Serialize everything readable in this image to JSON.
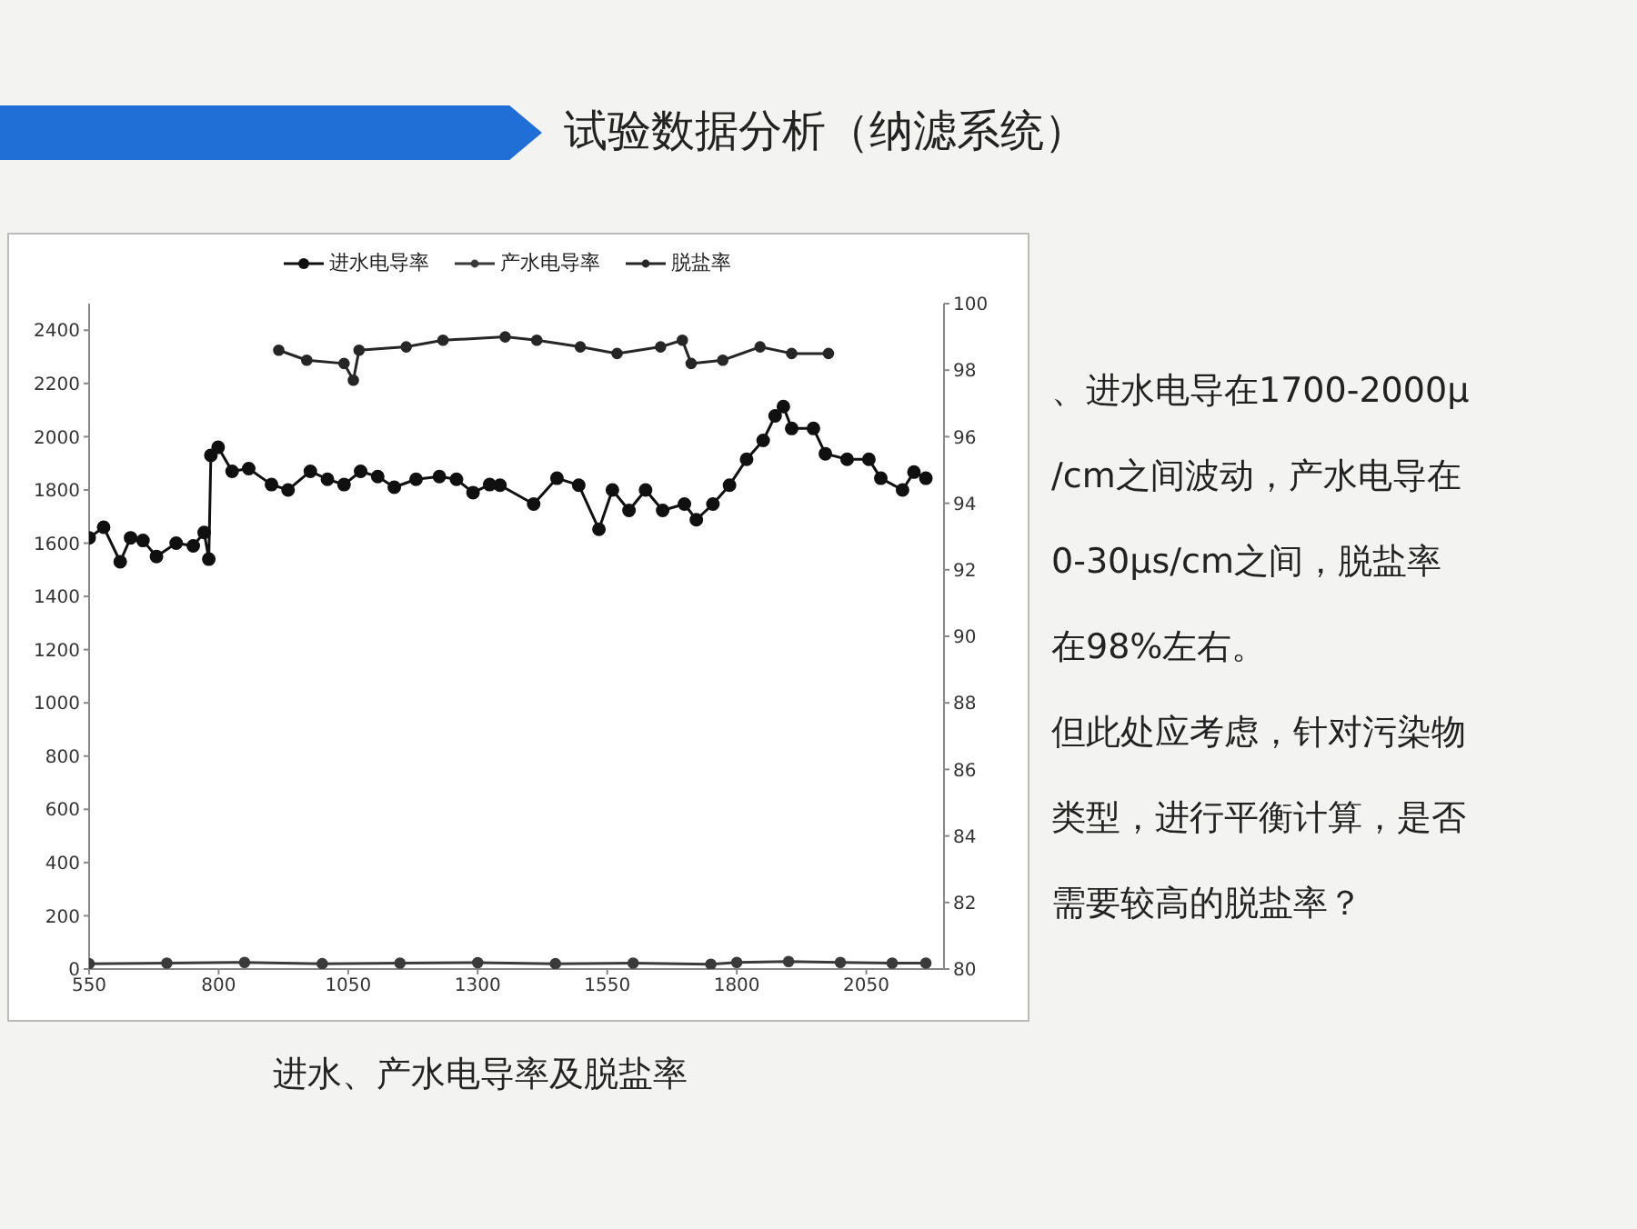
{
  "chart_data": {
    "type": "line",
    "title": "试验数据分析（纳滤系统）",
    "annotations": [
      "进水、产水电导率及脱盐率",
      "、进水电导在1700-2000μ",
      "/cm之间波动，产水电导在",
      "0-30μs/cm之间，脱盐率",
      "在98%左右。",
      "但此处应考虑，针对污染物",
      "类型，进行平衡计算，是否",
      "需要较高的脱盐率？"
    ],
    "xlim": [
      550,
      2200
    ],
    "xticks": [
      550,
      800,
      1050,
      1300,
      1550,
      1800,
      2050
    ],
    "ylim": [
      0,
      2500
    ],
    "yticks": [
      0,
      200,
      400,
      600,
      800,
      1000,
      1200,
      1400,
      1600,
      1800,
      2000,
      2200,
      2400
    ],
    "y2lim": [
      80,
      100
    ],
    "y2ticks": [
      80,
      82,
      84,
      86,
      88,
      90,
      92,
      94,
      96,
      98,
      100
    ],
    "legend": "top",
    "grid": false,
    "marker": "circle",
    "line_style": "solid",
    "series": [
      {
        "name": "进水电导率",
        "color": "#101010",
        "x": [
          550,
          578,
          610,
          630,
          654,
          680,
          718,
          751,
          772,
          781,
          785,
          799,
          826,
          858,
          902,
          934,
          977,
          1010,
          1042,
          1074,
          1107,
          1139,
          1181,
          1226,
          1259,
          1291,
          1323,
          1343,
          1408,
          1453,
          1495,
          1534,
          1560,
          1592,
          1624,
          1657,
          1699,
          1722,
          1754,
          1786,
          1819,
          1851,
          1874,
          1890,
          1906,
          1948,
          1971,
          2013,
          2055,
          2078,
          2120,
          2142,
          2165
        ],
        "values": [
          1620,
          1660,
          1530,
          1620,
          1610,
          1550,
          1600,
          1590,
          1640,
          1540,
          1930,
          1960,
          1870,
          1880,
          1820,
          1800,
          1870,
          1840,
          1820,
          1870,
          1850,
          1810,
          1840,
          1850,
          1840,
          1790,
          1820,
          1818,
          1747,
          1844,
          1818,
          1652,
          1800,
          1723,
          1800,
          1723,
          1747,
          1688,
          1747,
          1818,
          1915,
          1986,
          2078,
          2113,
          2031,
          2031,
          1936,
          1915,
          1915,
          1844,
          1800,
          1867,
          1844
        ]
      },
      {
        "name": "产水电导率",
        "color": "#3a3a3a",
        "x": [
          550,
          700,
          850,
          1000,
          1150,
          1300,
          1450,
          1600,
          1750,
          1800,
          1900,
          2000,
          2100,
          2165
        ],
        "values": [
          20,
          22,
          25,
          20,
          22,
          24,
          20,
          22,
          18,
          25,
          28,
          25,
          22,
          22
        ]
      },
      {
        "name": "脱盐率",
        "color": "#262626",
        "axis": "y2",
        "x": [
          916,
          970,
          1042,
          1060,
          1071,
          1162,
          1233,
          1353,
          1414,
          1498,
          1569,
          1653,
          1695,
          1712,
          1773,
          1845,
          1906,
          1977
        ],
        "values": [
          98.6,
          98.3,
          98.2,
          97.7,
          98.6,
          98.7,
          98.9,
          99.0,
          98.9,
          98.7,
          98.5,
          98.7,
          98.9,
          98.2,
          98.3,
          98.7,
          98.5,
          98.5
        ]
      }
    ]
  }
}
